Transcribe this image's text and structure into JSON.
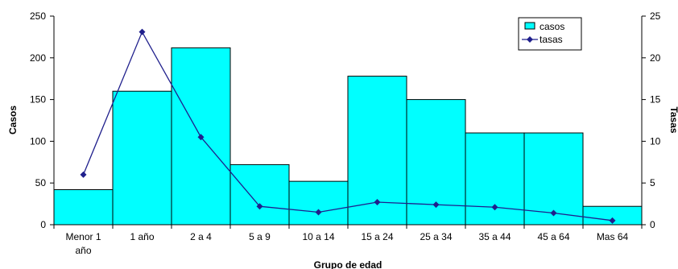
{
  "chart_data": {
    "type": "bar",
    "categories": [
      [
        "Menor 1",
        "año"
      ],
      [
        "1 año"
      ],
      [
        "2 a 4"
      ],
      [
        "5 a 9"
      ],
      [
        "10 a 14"
      ],
      [
        "15 a 24"
      ],
      [
        "25 a 34"
      ],
      [
        "35 a 44"
      ],
      [
        "45 a 64"
      ],
      [
        "Mas 64"
      ]
    ],
    "series": [
      {
        "name": "casos",
        "type": "bar",
        "axis": "left",
        "color": "#00FFFF",
        "values": [
          42,
          160,
          212,
          72,
          52,
          178,
          150,
          110,
          110,
          22
        ]
      },
      {
        "name": "tasas",
        "type": "line",
        "axis": "right",
        "color": "#1F1F8C",
        "values": [
          6.0,
          23.1,
          10.5,
          2.2,
          1.5,
          2.7,
          2.4,
          2.1,
          1.4,
          0.5
        ]
      }
    ],
    "xlabel": "Grupo de edad",
    "ylabel": "Casos",
    "y2label": "Tasas",
    "ylim": [
      0,
      250
    ],
    "y2lim": [
      0,
      25
    ],
    "yticks": [
      "0",
      "50",
      "100",
      "150",
      "200",
      "250"
    ],
    "y2ticks": [
      "0",
      "5",
      "10",
      "15",
      "20",
      "25"
    ],
    "legend_position": "top-right",
    "grid": false
  }
}
